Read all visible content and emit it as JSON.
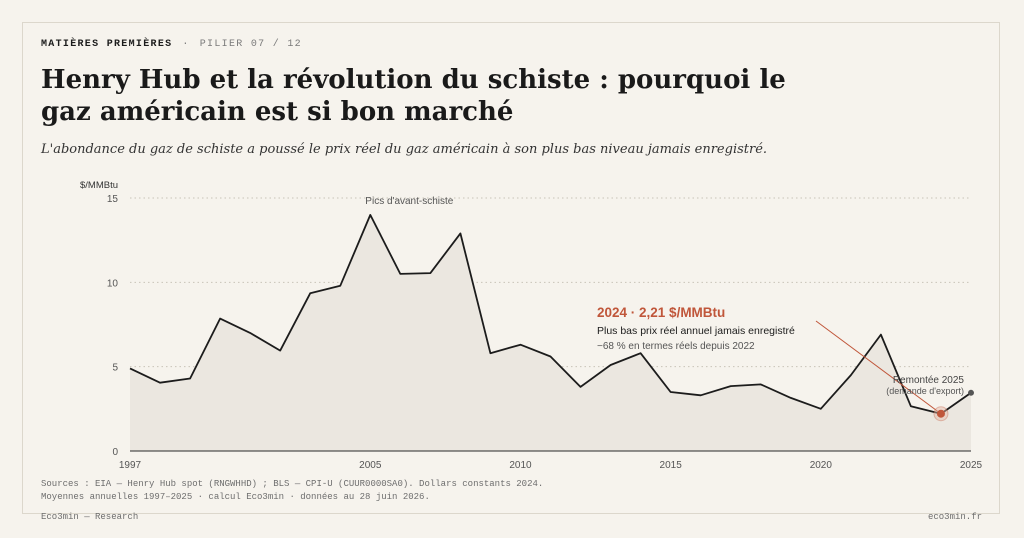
{
  "kicker": {
    "section": "MATIÈRES PREMIÈRES",
    "sep": "·",
    "pillar": "PILIER 07 / 12"
  },
  "title": "Henry Hub et la révolution du schiste : pourquoi le gaz américain est si bon marché",
  "subtitle": "L'abondance du gaz de schiste a poussé le prix réel du gaz américain à son plus bas niveau jamais enregistré.",
  "colors": {
    "line": "#1c1c1c",
    "area": "#ebe7e0",
    "accent": "#c0563a",
    "grid": "#c8c3b8"
  },
  "chart_data": {
    "type": "area",
    "ylabel": "$/MMBtu",
    "xlim": [
      1997,
      2025
    ],
    "ylim": [
      0,
      15
    ],
    "y_ticks": [
      0,
      5,
      10,
      15
    ],
    "x_ticks": [
      1997,
      2005,
      2010,
      2015,
      2020,
      2025
    ],
    "grid": true,
    "series": [
      {
        "x": [
          1997,
          1998,
          1999,
          2000,
          2001,
          2002,
          2003,
          2004,
          2005,
          2006,
          2007,
          2008,
          2009,
          2010,
          2011,
          2012,
          2013,
          2014,
          2015,
          2016,
          2017,
          2018,
          2019,
          2020,
          2021,
          2022,
          2023,
          2024,
          2025
        ],
        "values": [
          4.9,
          4.05,
          4.3,
          7.85,
          7.0,
          5.95,
          9.35,
          9.8,
          14.0,
          10.5,
          10.55,
          12.9,
          5.8,
          6.3,
          5.6,
          3.8,
          5.1,
          5.8,
          3.5,
          3.3,
          3.85,
          3.95,
          3.15,
          2.5,
          4.5,
          6.9,
          2.65,
          2.21,
          3.45
        ]
      }
    ],
    "annotations": {
      "peaks_label": "Pics d'avant-schiste",
      "highlight": {
        "x": 2024,
        "y": 2.21,
        "headline": "2024 · 2,21 $/MMBtu",
        "line1": "Plus bas prix réel annuel jamais enregistré",
        "line2": "−68 % en termes réels depuis 2022"
      },
      "rebound": {
        "x": 2025,
        "line1": "Remontée 2025",
        "line2": "(demande d'export)"
      }
    }
  },
  "sources": {
    "line1": "Sources : EIA — Henry Hub spot (RNGWHHD) ; BLS — CPI-U (CUUR0000SA0). Dollars constants 2024.",
    "line2": "Moyennes annuelles 1997–2025 · calcul Eco3min · données au 28 juin 2026."
  },
  "footer": {
    "left": "Eco3min — Research",
    "right": "eco3min.fr"
  }
}
